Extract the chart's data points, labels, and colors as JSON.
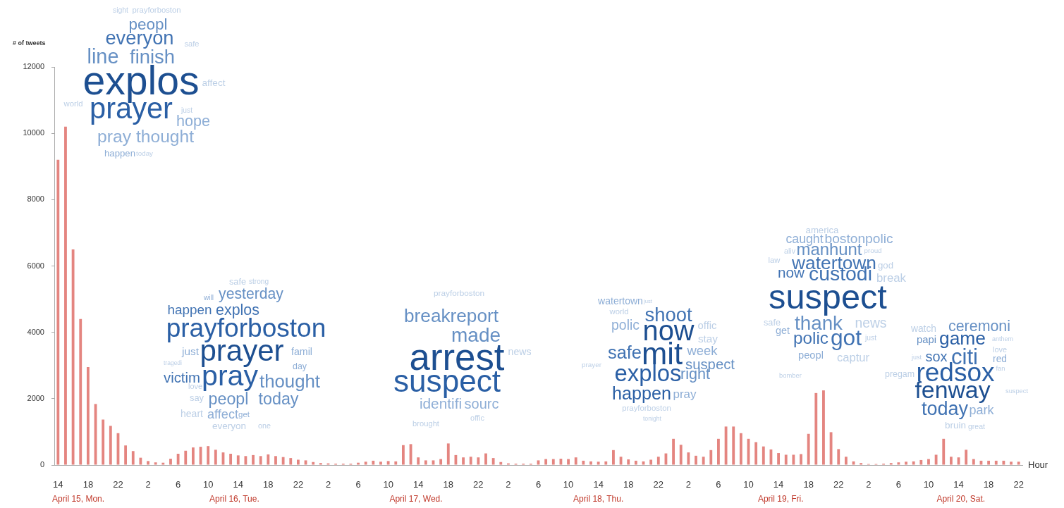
{
  "chart_data": {
    "type": "bar",
    "ylabel": "# of tweets",
    "xlabel": "Hour",
    "color": "#e48580",
    "categories": [
      "14",
      null,
      null,
      null,
      "18",
      null,
      null,
      null,
      "22",
      null,
      null,
      null,
      "2",
      null,
      null,
      null,
      "6",
      null,
      null,
      null,
      "10",
      null,
      null,
      null,
      "14",
      null,
      null,
      null,
      "18",
      null,
      null,
      null,
      "22",
      null,
      null,
      null,
      "2",
      null,
      null,
      null,
      "6",
      null,
      null,
      null,
      "10",
      null,
      null,
      null,
      "14",
      null,
      null,
      null,
      "18",
      null,
      null,
      null,
      "22",
      null,
      null,
      null,
      "2",
      null,
      null,
      null,
      "6",
      null,
      null,
      null,
      "10",
      null,
      null,
      null,
      "14",
      null,
      null,
      null,
      "18",
      null,
      null,
      null,
      "22",
      null,
      null,
      null,
      "2",
      null,
      null,
      null,
      "6",
      null,
      null,
      null,
      "10",
      null,
      null,
      null,
      "14",
      null,
      null,
      null,
      "18",
      null,
      null,
      null,
      "22",
      null,
      null,
      null,
      "2",
      null,
      null,
      null,
      "6",
      null,
      null,
      null,
      "10",
      null,
      null,
      null,
      "14",
      null,
      null,
      null,
      "18",
      null,
      null,
      null,
      "22"
    ],
    "values": [
      9200,
      10200,
      6500,
      4400,
      2950,
      1840,
      1370,
      1180,
      960,
      590,
      420,
      220,
      120,
      80,
      70,
      190,
      340,
      430,
      530,
      550,
      570,
      460,
      380,
      340,
      290,
      270,
      300,
      270,
      320,
      270,
      240,
      210,
      160,
      140,
      90,
      60,
      50,
      40,
      40,
      40,
      70,
      100,
      130,
      100,
      120,
      110,
      600,
      630,
      230,
      140,
      140,
      180,
      650,
      300,
      230,
      250,
      230,
      350,
      210,
      90,
      50,
      40,
      40,
      40,
      140,
      180,
      180,
      190,
      180,
      230,
      130,
      110,
      100,
      110,
      450,
      250,
      170,
      130,
      110,
      160,
      250,
      350,
      790,
      610,
      380,
      280,
      250,
      450,
      790,
      1160,
      1160,
      960,
      790,
      690,
      560,
      470,
      360,
      310,
      310,
      330,
      940,
      2170,
      2250,
      990,
      480,
      250,
      110,
      60,
      30,
      30,
      40,
      60,
      80,
      100,
      110,
      150,
      180,
      310,
      790,
      250,
      230,
      460,
      180,
      130,
      130,
      130,
      130,
      100,
      100
    ],
    "ylim": [
      0,
      12000
    ],
    "yticks": [
      0,
      2000,
      4000,
      6000,
      8000,
      10000,
      12000
    ],
    "annotations": [
      "April 15, Mon.",
      "April 16, Tue.",
      "April 17, Wed.",
      "April 18, Thu.",
      "April 19, Fri.",
      "April 20, Sat.",
      "sight",
      "prayforboston",
      "peopl",
      "everyon",
      "safe",
      "line",
      "finish",
      "explos",
      "affect",
      "world",
      "prayer",
      "just",
      "hope",
      "pray",
      "thought",
      "happen",
      "today",
      "safe",
      "strong",
      "will",
      "yesterday",
      "happen",
      "explos",
      "prayforboston",
      "prayer",
      "just",
      "famil",
      "tragedi",
      "day",
      "victim",
      "pray",
      "thought",
      "love",
      "say",
      "peopl",
      "today",
      "heart",
      "affect",
      "get",
      "everyon",
      "one",
      "prayforboston",
      "breakreport",
      "made",
      "arrest",
      "suspect",
      "news",
      "identifi",
      "sourc",
      "brought",
      "offic",
      "watertown",
      "just",
      "world",
      "shoot",
      "polic",
      "now",
      "offic",
      "stay",
      "safe",
      "mit",
      "week",
      "suspect",
      "prayer",
      "explos",
      "right",
      "happen",
      "pray",
      "prayforboston",
      "tonight",
      "america",
      "caught",
      "bostonpolic",
      "aliv",
      "manhunt",
      "proud",
      "law",
      "watertown",
      "god",
      "now",
      "custodi",
      "break",
      "suspect",
      "safe",
      "thank",
      "news",
      "get",
      "polic",
      "got",
      "just",
      "peopl",
      "captur",
      "bomber",
      "watch",
      "ceremoni",
      "papi",
      "game",
      "anthem",
      "love",
      "just",
      "sox",
      "citi",
      "red",
      "pregam",
      "redsox",
      "fan",
      "fenway",
      "suspect",
      "today",
      "park",
      "bruin",
      "great"
    ]
  }
}
